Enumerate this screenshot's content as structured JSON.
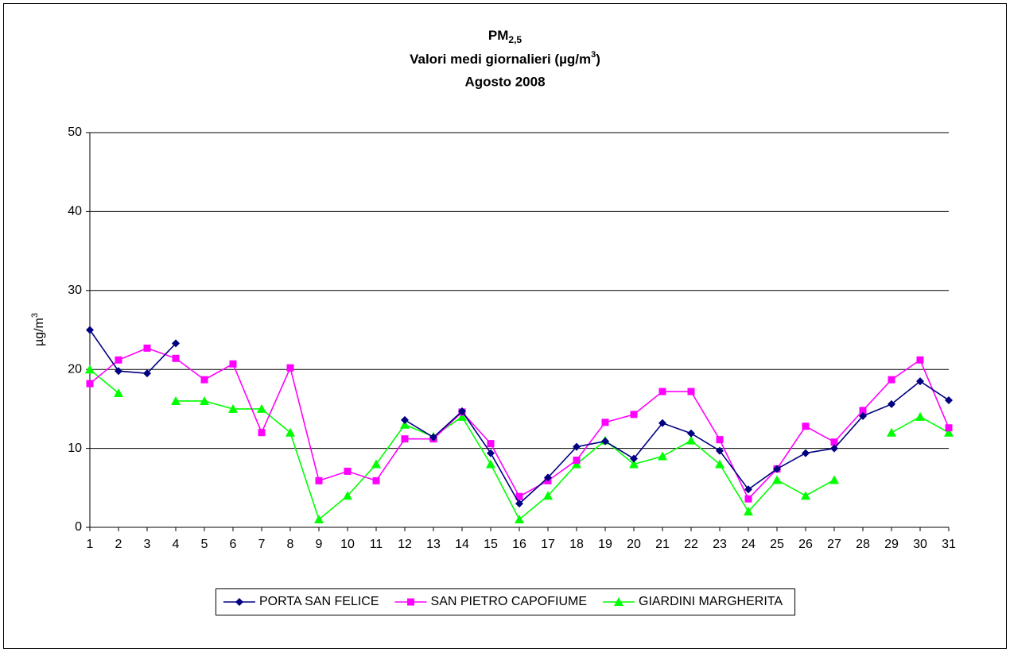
{
  "chart_data": {
    "type": "line",
    "title": "PM",
    "title_subscript": "2,5",
    "subtitle": [
      "Valori medi giornalieri (µg/m",
      "3",
      ")"
    ],
    "subtitle2": "Agosto 2008",
    "ylabel": [
      "µg/m",
      "3"
    ],
    "categories": [
      1,
      2,
      3,
      4,
      5,
      6,
      7,
      8,
      9,
      10,
      11,
      12,
      13,
      14,
      15,
      16,
      17,
      18,
      19,
      20,
      21,
      22,
      23,
      24,
      25,
      26,
      27,
      28,
      29,
      30,
      31
    ],
    "series": [
      {
        "name": "PORTA SAN FELICE",
        "color": "#000080",
        "marker": "diamond",
        "values": [
          25,
          19.8,
          19.5,
          23.3,
          null,
          null,
          null,
          null,
          null,
          null,
          null,
          13.6,
          11.4,
          14.7,
          9.4,
          3.0,
          6.3,
          10.2,
          10.9,
          8.7,
          13.2,
          11.9,
          9.7,
          4.8,
          7.4,
          9.4,
          10.0,
          14.1,
          15.6,
          18.5,
          16.1
        ]
      },
      {
        "name": "SAN PIETRO CAPOFIUME",
        "color": "#ff00ff",
        "marker": "square",
        "values": [
          18.2,
          21.2,
          22.7,
          21.4,
          18.7,
          20.7,
          12.0,
          20.2,
          5.9,
          7.1,
          5.9,
          11.2,
          11.2,
          14.6,
          10.6,
          3.9,
          5.9,
          8.5,
          13.3,
          14.3,
          17.2,
          17.2,
          11.1,
          3.6,
          7.4,
          12.8,
          10.8,
          14.8,
          18.7,
          21.2,
          12.6
        ]
      },
      {
        "name": "GIARDINI MARGHERITA",
        "color": "#00ff00",
        "marker": "triangle",
        "values": [
          20,
          17,
          null,
          16,
          16,
          15,
          15,
          12,
          1,
          4,
          8,
          13,
          11.5,
          14,
          8,
          1,
          4,
          8,
          11,
          8,
          9,
          11,
          8,
          2,
          6,
          4,
          6,
          null,
          12,
          14,
          12
        ]
      }
    ],
    "ylim": [
      0,
      50
    ],
    "yticks": [
      0,
      10,
      20,
      30,
      40,
      50
    ],
    "grid": true,
    "legend": "bottom"
  }
}
